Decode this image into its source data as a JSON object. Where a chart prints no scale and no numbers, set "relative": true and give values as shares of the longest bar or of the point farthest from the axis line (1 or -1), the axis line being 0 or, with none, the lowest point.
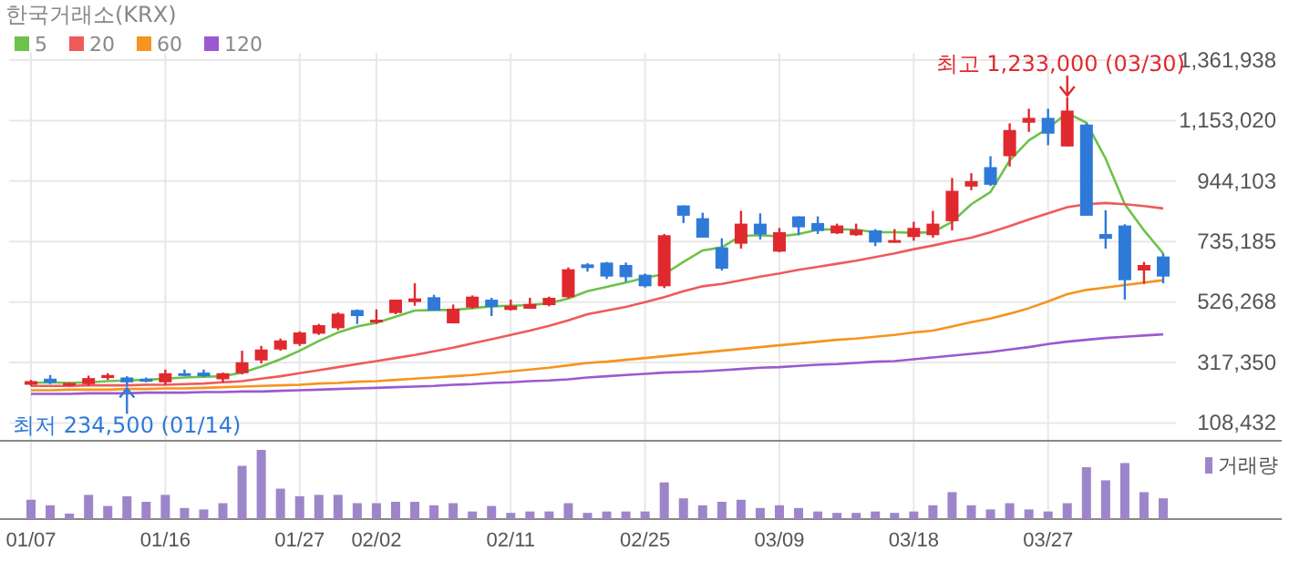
{
  "chart_data": [
    {
      "type": "candlestick",
      "title": "한국거래소(KRX)",
      "categories": [
        "01/07",
        null,
        null,
        null,
        null,
        null,
        null,
        "01/16",
        null,
        null,
        null,
        null,
        null,
        null,
        "01/27",
        null,
        null,
        null,
        "02/02",
        null,
        null,
        null,
        null,
        null,
        null,
        "02/11",
        null,
        null,
        null,
        null,
        null,
        null,
        "02/25",
        null,
        null,
        null,
        null,
        null,
        null,
        "03/09",
        null,
        null,
        null,
        null,
        null,
        null,
        "03/18",
        null,
        null,
        null,
        null,
        null,
        null,
        "03/27",
        null,
        null,
        null,
        null,
        null,
        null
      ],
      "ylim": [
        47000,
        1361938
      ],
      "yticks": [
        {
          "value": 108432,
          "label": "108,432"
        },
        {
          "value": 317350,
          "label": "317,350"
        },
        {
          "value": 526268,
          "label": "526,268"
        },
        {
          "value": 735185,
          "label": "735,185"
        },
        {
          "value": 944103,
          "label": "944,103"
        },
        {
          "value": 1153020,
          "label": "1,153,020"
        },
        {
          "value": 1361938,
          "label": "1,361,938"
        }
      ],
      "grid": true,
      "legend": "top left",
      "annotations": [
        {
          "text": "최고 1,233,000 (03/30)",
          "y": 1233000
        },
        {
          "text": "최저 234,500 (01/14)",
          "y": 234500
        }
      ],
      "series": [
        {
          "type": "candlestick",
          "ohlc": [
            [
              240500,
              257300,
              236300,
              253100
            ],
            [
              261500,
              274100,
              242600,
              246800
            ],
            [
              237000,
              248900,
              235000,
              246800
            ],
            [
              242600,
              272000,
              236000,
              263600
            ],
            [
              263600,
              280400,
              257300,
              274100
            ],
            [
              265700,
              269900,
              234500,
              248900
            ],
            [
              261500,
              265700,
              248900,
              251000
            ],
            [
              248900,
              293000,
              240500,
              280400
            ],
            [
              280400,
              293000,
              269900,
              276200
            ],
            [
              282500,
              293000,
              267800,
              269900
            ],
            [
              259400,
              282500,
              248900,
              280400
            ],
            [
              280400,
              358100,
              276200,
              318200
            ],
            [
              324500,
              374900,
              314000,
              362300
            ],
            [
              362300,
              400100,
              358100,
              393800
            ],
            [
              381200,
              425300,
              374900,
              421100
            ],
            [
              416900,
              450500,
              412700,
              446300
            ],
            [
              435800,
              490400,
              429500,
              486200
            ],
            [
              498800,
              500900,
              450500,
              477800
            ],
            [
              458900,
              500900,
              450500,
              465200
            ],
            [
              488300,
              534500,
              484100,
              534500
            ],
            [
              526100,
              591200,
              513500,
              538700
            ],
            [
              542900,
              551300,
              496700,
              496700
            ],
            [
              452600,
              517700,
              452600,
              503000
            ],
            [
              507200,
              549200,
              503000,
              545000
            ],
            [
              534500,
              540800,
              477800,
              509300
            ],
            [
              498800,
              534500,
              496700,
              513500
            ],
            [
              503000,
              540800,
              503000,
              519800
            ],
            [
              515600,
              545000,
              511400,
              540800
            ],
            [
              542900,
              645800,
              538700,
              639500
            ],
            [
              656300,
              660500,
              631100,
              643700
            ],
            [
              662600,
              664700,
              605900,
              614300
            ],
            [
              654200,
              662600,
              595400,
              612200
            ],
            [
              620600,
              624800,
              576500,
              580700
            ],
            [
              580700,
              761300,
              574400,
              757100
            ],
            [
              860000,
              860000,
              799100,
              824300
            ],
            [
              815900,
              834800,
              748700,
              748700
            ],
            [
              715100,
              746600,
              635300,
              641600
            ],
            [
              727700,
              841100,
              710900,
              797000
            ],
            [
              797000,
              832700,
              742400,
              759200
            ],
            [
              700400,
              782300,
              698300,
              767600
            ],
            [
              822200,
              822200,
              757100,
              784400
            ],
            [
              799100,
              822200,
              761300,
              771800
            ],
            [
              763400,
              797000,
              761300,
              790700
            ],
            [
              757100,
              797000,
              755000,
              776000
            ],
            [
              773900,
              778100,
              719300,
              731900
            ],
            [
              736100,
              778100,
              731900,
              740300
            ],
            [
              750800,
              803300,
              738200,
              782300
            ],
            [
              757100,
              841100,
              748700,
              797000
            ],
            [
              805400,
              954500,
              773900,
              910400
            ],
            [
              925100,
              971300,
              912500,
              944000
            ],
            [
              992300,
              1030100,
              927200,
              931400
            ],
            [
              1030100,
              1143500,
              994400,
              1120400
            ],
            [
              1145600,
              1193900,
              1114100,
              1162400
            ],
            [
              1162400,
              1193900,
              1067900,
              1107800
            ],
            [
              1063700,
              1233000,
              1063700,
              1187600
            ],
            [
              1139300,
              1143500,
              824300,
              824300
            ],
            [
              761300,
              843200,
              710900,
              744500
            ],
            [
              790700,
              794900,
              534500,
              601700
            ],
            [
              635300,
              664700,
              589100,
              654200
            ],
            [
              683600,
              694100,
              591200,
              614300
            ]
          ],
          "colors": [
            "#e0292e",
            "#2f7ad8",
            "#e0292e",
            "#e0292e",
            "#e0292e",
            "#2f7ad8",
            "#2f7ad8",
            "#e0292e",
            "#2f7ad8",
            "#2f7ad8",
            "#e0292e",
            "#e0292e",
            "#e0292e",
            "#e0292e",
            "#e0292e",
            "#e0292e",
            "#e0292e",
            "#2f7ad8",
            "#e0292e",
            "#e0292e",
            "#e0292e",
            "#2f7ad8",
            "#e0292e",
            "#e0292e",
            "#2f7ad8",
            "#e0292e",
            "#e0292e",
            "#e0292e",
            "#e0292e",
            "#2f7ad8",
            "#2f7ad8",
            "#2f7ad8",
            "#2f7ad8",
            "#e0292e",
            "#2f7ad8",
            "#2f7ad8",
            "#2f7ad8",
            "#e0292e",
            "#2f7ad8",
            "#e0292e",
            "#2f7ad8",
            "#2f7ad8",
            "#e0292e",
            "#e0292e",
            "#2f7ad8",
            "#e0292e",
            "#e0292e",
            "#e0292e",
            "#e0292e",
            "#e0292e",
            "#2f7ad8",
            "#e0292e",
            "#e0292e",
            "#2f7ad8",
            "#e0292e",
            "#2f7ad8",
            "#2f7ad8",
            "#2f7ad8",
            "#e0292e",
            "#2f7ad8"
          ]
        },
        {
          "type": "line",
          "name": "5",
          "color": "#6cc24a",
          "values": [
            246800,
            248900,
            246800,
            248900,
            253100,
            255200,
            257300,
            261500,
            265700,
            267800,
            269900,
            282500,
            303500,
            328700,
            358100,
            391700,
            421100,
            442100,
            454700,
            475700,
            496700,
            498800,
            498800,
            505100,
            511400,
            513500,
            515600,
            521900,
            538700,
            563900,
            578600,
            593300,
            610100,
            622700,
            664700,
            704600,
            715100,
            755000,
            757100,
            752900,
            761300,
            776000,
            778100,
            776000,
            767600,
            767600,
            765500,
            767600,
            803300,
            864200,
            906200,
            1015400,
            1084700,
            1126700,
            1179200,
            1145600,
            1021700,
            864200,
            773900,
            694100
          ]
        },
        {
          "type": "line",
          "name": "20",
          "color": "#ef5a5a",
          "values": [
            236300,
            236300,
            236300,
            238400,
            238400,
            238400,
            240500,
            240500,
            242600,
            244700,
            248900,
            253100,
            261500,
            269900,
            280400,
            290900,
            301400,
            311900,
            322400,
            332900,
            343400,
            356000,
            368600,
            383300,
            398000,
            412700,
            427400,
            444200,
            463100,
            484100,
            496700,
            509300,
            526100,
            542900,
            563900,
            580700,
            589100,
            601700,
            614300,
            624800,
            637400,
            647900,
            658400,
            668900,
            681500,
            694100,
            708800,
            721400,
            736100,
            748700,
            767600,
            788600,
            811700,
            832700,
            853700,
            864200,
            868400,
            864200,
            857900,
            849500
          ]
        },
        {
          "type": "line",
          "name": "60",
          "color": "#f7931e",
          "values": [
            221600,
            221600,
            223700,
            223700,
            223700,
            225800,
            225800,
            227900,
            227900,
            230000,
            232100,
            234200,
            236300,
            238400,
            240500,
            244700,
            246800,
            251000,
            253100,
            257300,
            261500,
            265700,
            269900,
            274100,
            280400,
            286700,
            293000,
            299300,
            307700,
            316100,
            320300,
            326600,
            332900,
            339200,
            345500,
            351800,
            358100,
            364400,
            370700,
            377000,
            383300,
            389600,
            395900,
            400100,
            406400,
            412700,
            421100,
            427400,
            442100,
            456800,
            469400,
            486200,
            505100,
            528200,
            553400,
            568100,
            576500,
            584900,
            593300,
            601700
          ]
        },
        {
          "type": "line",
          "name": "120",
          "color": "#9b59d0",
          "values": [
            209000,
            209000,
            209000,
            211100,
            211100,
            211100,
            213200,
            213200,
            213200,
            215300,
            215300,
            217400,
            217400,
            219500,
            221600,
            223700,
            225800,
            227900,
            230000,
            232100,
            234200,
            236300,
            240500,
            242600,
            246800,
            248900,
            253100,
            255200,
            259400,
            265700,
            269900,
            274100,
            278300,
            282500,
            284600,
            286700,
            290900,
            295100,
            299300,
            301400,
            305600,
            309800,
            311900,
            316100,
            320300,
            322400,
            328700,
            335000,
            341300,
            347600,
            353900,
            362300,
            370700,
            381200,
            389600,
            395900,
            402200,
            406400,
            410600,
            414800
          ]
        }
      ]
    },
    {
      "type": "bar",
      "relative": true,
      "categories": [
        null,
        null,
        null,
        null,
        null,
        null,
        null,
        null,
        null,
        null,
        null,
        null,
        null,
        null,
        null,
        null,
        null,
        null,
        null,
        null,
        null,
        null,
        null,
        null,
        null,
        null,
        null,
        null,
        null,
        null,
        null,
        null,
        null,
        null,
        null,
        null,
        null,
        null,
        null,
        null,
        null,
        null,
        null,
        null,
        null,
        null,
        null,
        null,
        null,
        null,
        null,
        null,
        null,
        null,
        null,
        null,
        null,
        null,
        null,
        null
      ],
      "legend": "top right",
      "series": [
        {
          "name": "거래량",
          "color": "#9c86c9",
          "values": [
            0.28,
            0.2,
            0.08,
            0.35,
            0.19,
            0.33,
            0.25,
            0.35,
            0.16,
            0.14,
            0.23,
            0.77,
            1,
            0.44,
            0.33,
            0.35,
            0.35,
            0.23,
            0.23,
            0.25,
            0.25,
            0.2,
            0.23,
            0.11,
            0.19,
            0.09,
            0.11,
            0.11,
            0.23,
            0.09,
            0.11,
            0.11,
            0.11,
            0.53,
            0.3,
            0.2,
            0.25,
            0.28,
            0.16,
            0.2,
            0.16,
            0.11,
            0.09,
            0.09,
            0.11,
            0.09,
            0.11,
            0.2,
            0.39,
            0.2,
            0.14,
            0.23,
            0.14,
            0.11,
            0.23,
            0.75,
            0.56,
            0.81,
            0.39,
            0.3
          ]
        }
      ]
    }
  ]
}
